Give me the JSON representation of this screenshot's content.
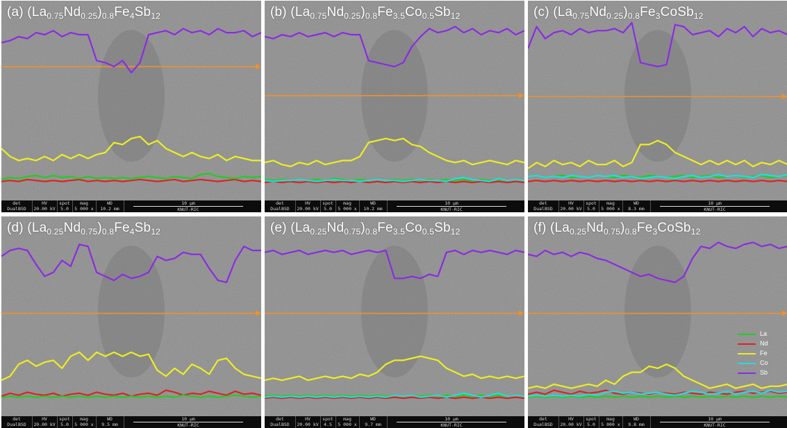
{
  "panels": [
    {
      "prefix": "(a)",
      "sub1": "0.75",
      "sub2": "0.25",
      "sub3": "0.8",
      "tail": [
        [
          "Fe",
          ""
        ],
        [
          "4",
          "sub"
        ],
        [
          "Sb",
          ""
        ],
        [
          "12",
          "sub"
        ]
      ],
      "databar": {
        "det": "DualBSD",
        "hv": "20.00 kV",
        "spot": "5.0",
        "mag": "5 000 x",
        "wd": "10.2 mm",
        "scale": "10 μm",
        "org": "KNUT-RIC"
      },
      "arrow_y": 0.33,
      "traces": {
        "Sb": [
          0.21,
          0.2,
          0.18,
          0.19,
          0.16,
          0.17,
          0.15,
          0.18,
          0.16,
          0.17,
          0.17,
          0.3,
          0.31,
          0.33,
          0.3,
          0.36,
          0.31,
          0.17,
          0.16,
          0.15,
          0.17,
          0.14,
          0.16,
          0.15,
          0.17,
          0.14,
          0.16,
          0.16,
          0.15,
          0.18,
          0.16
        ],
        "Fe": [
          0.74,
          0.78,
          0.8,
          0.79,
          0.8,
          0.78,
          0.8,
          0.77,
          0.79,
          0.77,
          0.79,
          0.77,
          0.76,
          0.71,
          0.72,
          0.69,
          0.68,
          0.72,
          0.7,
          0.74,
          0.76,
          0.78,
          0.76,
          0.78,
          0.79,
          0.77,
          0.8,
          0.78,
          0.79,
          0.8,
          0.8
        ],
        "La": [
          0.895,
          0.885,
          0.89,
          0.88,
          0.875,
          0.885,
          0.875,
          0.885,
          0.88,
          0.89,
          0.88,
          0.89,
          0.885,
          0.89,
          0.885,
          0.89,
          0.885,
          0.88,
          0.885,
          0.89,
          0.88,
          0.885,
          0.89,
          0.87,
          0.865,
          0.88,
          0.885,
          0.89,
          0.88,
          0.885,
          0.88
        ],
        "Nd": [
          0.905,
          0.9,
          0.905,
          0.895,
          0.9,
          0.905,
          0.9,
          0.905,
          0.9,
          0.895,
          0.905,
          0.9,
          0.905,
          0.9,
          0.905,
          0.9,
          0.895,
          0.9,
          0.905,
          0.9,
          0.895,
          0.905,
          0.9,
          0.895,
          0.9,
          0.905,
          0.9,
          0.895,
          0.905,
          0.9,
          0.905
        ],
        "Co": []
      }
    },
    {
      "prefix": "(b)",
      "sub1": "0.75",
      "sub2": "0.25",
      "sub3": "0.8",
      "tail": [
        [
          "Fe",
          ""
        ],
        [
          "3.5",
          "sub"
        ],
        [
          "Co",
          ""
        ],
        [
          "0.5",
          "sub"
        ],
        [
          "Sb",
          ""
        ],
        [
          "12",
          "sub"
        ]
      ],
      "databar": {
        "det": "DualBSD",
        "hv": "20.00 kV",
        "spot": "5.0",
        "mag": "5 000 x",
        "wd": "10.2 mm",
        "scale": "10 μm",
        "org": "KNUT-RIC"
      },
      "arrow_y": 0.475,
      "traces": {
        "Sb": [
          0.18,
          0.19,
          0.17,
          0.18,
          0.16,
          0.18,
          0.17,
          0.16,
          0.18,
          0.16,
          0.17,
          0.17,
          0.3,
          0.31,
          0.32,
          0.33,
          0.31,
          0.23,
          0.18,
          0.14,
          0.16,
          0.15,
          0.13,
          0.16,
          0.14,
          0.17,
          0.15,
          0.16,
          0.14,
          0.17,
          0.15
        ],
        "Fe": [
          0.81,
          0.8,
          0.82,
          0.83,
          0.81,
          0.82,
          0.8,
          0.82,
          0.81,
          0.8,
          0.8,
          0.78,
          0.71,
          0.7,
          0.69,
          0.7,
          0.69,
          0.72,
          0.73,
          0.76,
          0.78,
          0.8,
          0.81,
          0.8,
          0.82,
          0.81,
          0.8,
          0.81,
          0.82,
          0.8,
          0.81
        ],
        "La": [
          0.895,
          0.9,
          0.895,
          0.9,
          0.895,
          0.9,
          0.895,
          0.9,
          0.89,
          0.895,
          0.9,
          0.895,
          0.9,
          0.895,
          0.9,
          0.895,
          0.9,
          0.895,
          0.9,
          0.895,
          0.9,
          0.895,
          0.9,
          0.895,
          0.9,
          0.895,
          0.9,
          0.895,
          0.9,
          0.895,
          0.9
        ],
        "Nd": [
          0.91,
          0.905,
          0.91,
          0.905,
          0.91,
          0.905,
          0.91,
          0.905,
          0.91,
          0.905,
          0.91,
          0.905,
          0.91,
          0.905,
          0.91,
          0.905,
          0.91,
          0.905,
          0.91,
          0.905,
          0.91,
          0.905,
          0.91,
          0.905,
          0.91,
          0.905,
          0.91,
          0.905,
          0.91,
          0.905,
          0.91
        ],
        "Co": [
          0.9,
          0.905,
          0.9,
          0.9,
          0.895,
          0.9,
          0.905,
          0.9,
          0.895,
          0.9,
          0.9,
          0.905,
          0.9,
          0.895,
          0.9,
          0.9,
          0.905,
          0.9,
          0.895,
          0.9,
          0.9,
          0.905,
          0.89,
          0.885,
          0.895,
          0.9,
          0.905,
          0.89,
          0.9,
          0.895,
          0.9
        ]
      }
    },
    {
      "prefix": "(c)",
      "sub1": "0.75",
      "sub2": "0.25",
      "sub3": "0.8",
      "tail": [
        [
          "Fe",
          ""
        ],
        [
          "3",
          "sub"
        ],
        [
          "CoSb",
          ""
        ],
        [
          "12",
          "sub"
        ]
      ],
      "databar": {
        "det": "DualBSD",
        "hv": "20.00 kV",
        "spot": "5.0",
        "mag": "5 000 x",
        "wd": "8.3 mm",
        "scale": "10 μm",
        "org": "KNUT-RIC"
      },
      "arrow_y": 0.48,
      "traces": {
        "Sb": [
          0.24,
          0.13,
          0.19,
          0.16,
          0.15,
          0.17,
          0.14,
          0.16,
          0.15,
          0.15,
          0.14,
          0.16,
          0.11,
          0.31,
          0.32,
          0.33,
          0.32,
          0.12,
          0.13,
          0.17,
          0.16,
          0.15,
          0.18,
          0.14,
          0.16,
          0.13,
          0.18,
          0.14,
          0.16,
          0.15,
          0.17
        ],
        "Fe": [
          0.84,
          0.81,
          0.83,
          0.8,
          0.82,
          0.81,
          0.83,
          0.8,
          0.82,
          0.82,
          0.8,
          0.83,
          0.81,
          0.72,
          0.72,
          0.7,
          0.72,
          0.76,
          0.78,
          0.8,
          0.82,
          0.8,
          0.82,
          0.8,
          0.82,
          0.8,
          0.83,
          0.81,
          0.82,
          0.8,
          0.82
        ],
        "La": [
          0.88,
          0.875,
          0.885,
          0.88,
          0.875,
          0.885,
          0.88,
          0.885,
          0.875,
          0.88,
          0.885,
          0.875,
          0.88,
          0.885,
          0.875,
          0.88,
          0.885,
          0.88,
          0.875,
          0.885,
          0.88,
          0.875,
          0.885,
          0.88,
          0.875,
          0.885,
          0.88,
          0.875,
          0.885,
          0.88,
          0.875
        ],
        "Nd": [
          0.905,
          0.9,
          0.905,
          0.9,
          0.905,
          0.9,
          0.905,
          0.9,
          0.905,
          0.9,
          0.905,
          0.9,
          0.905,
          0.9,
          0.905,
          0.9,
          0.905,
          0.9,
          0.905,
          0.9,
          0.905,
          0.9,
          0.905,
          0.9,
          0.905,
          0.9,
          0.905,
          0.9,
          0.905,
          0.9,
          0.905
        ],
        "Co": [
          0.88,
          0.875,
          0.885,
          0.88,
          0.885,
          0.875,
          0.88,
          0.885,
          0.875,
          0.88,
          0.875,
          0.885,
          0.88,
          0.89,
          0.885,
          0.88,
          0.885,
          0.89,
          0.88,
          0.875,
          0.885,
          0.88,
          0.87,
          0.88,
          0.875,
          0.88,
          0.885,
          0.87,
          0.875,
          0.88,
          0.87
        ]
      }
    },
    {
      "prefix": "(d)",
      "sub1": "0.25",
      "sub2": "0.75",
      "sub3": "0.8",
      "tail": [
        [
          "Fe",
          ""
        ],
        [
          "4",
          "sub"
        ],
        [
          "Sb",
          ""
        ],
        [
          "12",
          "sub"
        ]
      ],
      "databar": {
        "det": "DualBSD",
        "hv": "20.00 kV",
        "spot": "5.0",
        "mag": "5 000 x",
        "wd": "9.5 mm",
        "scale": "10 μm",
        "org": "KNUT-RIC"
      },
      "arrow_y": 0.485,
      "traces": {
        "Sb": [
          0.2,
          0.17,
          0.16,
          0.17,
          0.24,
          0.3,
          0.28,
          0.22,
          0.25,
          0.14,
          0.15,
          0.28,
          0.3,
          0.32,
          0.29,
          0.31,
          0.3,
          0.28,
          0.2,
          0.22,
          0.21,
          0.18,
          0.19,
          0.19,
          0.26,
          0.32,
          0.33,
          0.22,
          0.15,
          0.17,
          0.17
        ],
        "Fe": [
          0.82,
          0.8,
          0.74,
          0.72,
          0.75,
          0.73,
          0.72,
          0.76,
          0.7,
          0.68,
          0.72,
          0.68,
          0.7,
          0.68,
          0.7,
          0.68,
          0.7,
          0.69,
          0.77,
          0.8,
          0.76,
          0.79,
          0.74,
          0.76,
          0.79,
          0.72,
          0.71,
          0.76,
          0.79,
          0.8,
          0.81
        ],
        "La": [
          0.905,
          0.9,
          0.905,
          0.9,
          0.905,
          0.9,
          0.905,
          0.9,
          0.905,
          0.9,
          0.905,
          0.9,
          0.905,
          0.9,
          0.905,
          0.9,
          0.905,
          0.9,
          0.905,
          0.9,
          0.905,
          0.895,
          0.9,
          0.905,
          0.9,
          0.905,
          0.9,
          0.895,
          0.9,
          0.905,
          0.9
        ],
        "Nd": [
          0.9,
          0.885,
          0.895,
          0.88,
          0.89,
          0.895,
          0.885,
          0.9,
          0.89,
          0.885,
          0.895,
          0.88,
          0.89,
          0.895,
          0.885,
          0.9,
          0.89,
          0.885,
          0.895,
          0.87,
          0.88,
          0.895,
          0.885,
          0.89,
          0.875,
          0.885,
          0.895,
          0.875,
          0.89,
          0.885,
          0.895
        ],
        "Co": []
      }
    },
    {
      "prefix": "(e)",
      "sub1": "0.25",
      "sub2": "0.75",
      "sub3": "0.8",
      "tail": [
        [
          "Fe",
          ""
        ],
        [
          "3.5",
          "sub"
        ],
        [
          "Co",
          ""
        ],
        [
          "0.5",
          "sub"
        ],
        [
          "Sb",
          ""
        ],
        [
          "12",
          "sub"
        ]
      ],
      "databar": {
        "det": "DualBSD",
        "hv": "20.00 kV",
        "spot": "4.5",
        "mag": "5 000 x",
        "wd": "9.7 mm",
        "scale": "10 μm",
        "org": "KNUT-RIC"
      },
      "arrow_y": 0.485,
      "traces": {
        "Sb": [
          0.18,
          0.17,
          0.19,
          0.18,
          0.17,
          0.19,
          0.18,
          0.17,
          0.18,
          0.17,
          0.19,
          0.18,
          0.17,
          0.18,
          0.17,
          0.31,
          0.31,
          0.3,
          0.31,
          0.29,
          0.3,
          0.18,
          0.17,
          0.19,
          0.17,
          0.18,
          0.17,
          0.18,
          0.19,
          0.17,
          0.18
        ],
        "Fe": [
          0.82,
          0.81,
          0.82,
          0.81,
          0.8,
          0.82,
          0.81,
          0.8,
          0.81,
          0.8,
          0.81,
          0.79,
          0.8,
          0.78,
          0.74,
          0.72,
          0.72,
          0.71,
          0.7,
          0.71,
          0.72,
          0.76,
          0.78,
          0.8,
          0.79,
          0.81,
          0.8,
          0.81,
          0.8,
          0.81,
          0.8
        ],
        "La": [
          0.9,
          0.895,
          0.9,
          0.895,
          0.9,
          0.895,
          0.9,
          0.895,
          0.9,
          0.895,
          0.9,
          0.895,
          0.9,
          0.895,
          0.9,
          0.895,
          0.9,
          0.895,
          0.9,
          0.895,
          0.9,
          0.895,
          0.9,
          0.895,
          0.9,
          0.895,
          0.9,
          0.895,
          0.9,
          0.895,
          0.9
        ],
        "Nd": [
          0.91,
          0.905,
          0.91,
          0.905,
          0.91,
          0.905,
          0.91,
          0.905,
          0.91,
          0.905,
          0.91,
          0.905,
          0.91,
          0.905,
          0.91,
          0.905,
          0.91,
          0.905,
          0.91,
          0.905,
          0.91,
          0.905,
          0.91,
          0.905,
          0.91,
          0.905,
          0.91,
          0.905,
          0.91,
          0.905,
          0.91
        ],
        "Co": [
          0.905,
          0.9,
          0.905,
          0.9,
          0.905,
          0.9,
          0.905,
          0.9,
          0.905,
          0.9,
          0.905,
          0.9,
          0.905,
          0.9,
          0.905,
          0.895,
          0.9,
          0.895,
          0.905,
          0.9,
          0.895,
          0.905,
          0.895,
          0.885,
          0.895,
          0.905,
          0.895,
          0.885,
          0.9,
          0.895,
          0.9
        ]
      }
    },
    {
      "prefix": "(f)",
      "sub1": "0.25",
      "sub2": "0.75",
      "sub3": "0.8",
      "tail": [
        [
          "Fe",
          ""
        ],
        [
          "3",
          "sub"
        ],
        [
          "CoSb",
          ""
        ],
        [
          "12",
          "sub"
        ]
      ],
      "databar": {
        "det": "DualBSD",
        "hv": "20.00 kV",
        "spot": "5.0",
        "mag": "5 000 x",
        "wd": "9.8 mm",
        "scale": "10 μm",
        "org": "KNUT-RIC"
      },
      "arrow_y": 0.485,
      "traces": {
        "Sb": [
          0.19,
          0.2,
          0.17,
          0.19,
          0.18,
          0.2,
          0.18,
          0.19,
          0.21,
          0.22,
          0.24,
          0.26,
          0.28,
          0.3,
          0.29,
          0.31,
          0.32,
          0.33,
          0.3,
          0.21,
          0.15,
          0.16,
          0.13,
          0.15,
          0.16,
          0.14,
          0.13,
          0.15,
          0.14,
          0.16,
          0.15
        ],
        "Fe": [
          0.86,
          0.85,
          0.86,
          0.84,
          0.85,
          0.86,
          0.85,
          0.84,
          0.85,
          0.82,
          0.84,
          0.8,
          0.78,
          0.78,
          0.75,
          0.76,
          0.74,
          0.76,
          0.8,
          0.82,
          0.84,
          0.86,
          0.85,
          0.84,
          0.86,
          0.85,
          0.84,
          0.86,
          0.85,
          0.85,
          0.84
        ],
        "La": [
          0.905,
          0.9,
          0.905,
          0.9,
          0.905,
          0.9,
          0.905,
          0.9,
          0.905,
          0.9,
          0.905,
          0.9,
          0.905,
          0.9,
          0.905,
          0.9,
          0.905,
          0.9,
          0.905,
          0.9,
          0.905,
          0.9,
          0.905,
          0.9,
          0.905,
          0.9,
          0.905,
          0.9,
          0.905,
          0.9,
          0.905
        ],
        "Nd": [
          0.89,
          0.88,
          0.89,
          0.87,
          0.88,
          0.89,
          0.875,
          0.885,
          0.88,
          0.87,
          0.885,
          0.89,
          0.88,
          0.885,
          0.89,
          0.88,
          0.885,
          0.89,
          0.88,
          0.885,
          0.89,
          0.88,
          0.885,
          0.89,
          0.88,
          0.875,
          0.885,
          0.88,
          0.875,
          0.885,
          0.88
        ],
        "Co": [
          0.9,
          0.895,
          0.9,
          0.895,
          0.9,
          0.895,
          0.9,
          0.89,
          0.895,
          0.88,
          0.875,
          0.885,
          0.88,
          0.89,
          0.885,
          0.88,
          0.89,
          0.895,
          0.885,
          0.875,
          0.88,
          0.89,
          0.885,
          0.875,
          0.89,
          0.88,
          0.875,
          0.885,
          0.87,
          0.88,
          0.875
        ]
      }
    }
  ],
  "legend": [
    {
      "name": "La",
      "color": "#22cc22"
    },
    {
      "name": "Nd",
      "color": "#dd2222"
    },
    {
      "name": "Fe",
      "color": "#eeee22"
    },
    {
      "name": "Co",
      "color": "#22dddd"
    },
    {
      "name": "Sb",
      "color": "#8a2be2"
    }
  ],
  "arrow_color": "#f0902a",
  "databar_labels": {
    "det": "det",
    "hv": "HV",
    "spot": "spot",
    "mag": "mag",
    "wd": "WD"
  }
}
